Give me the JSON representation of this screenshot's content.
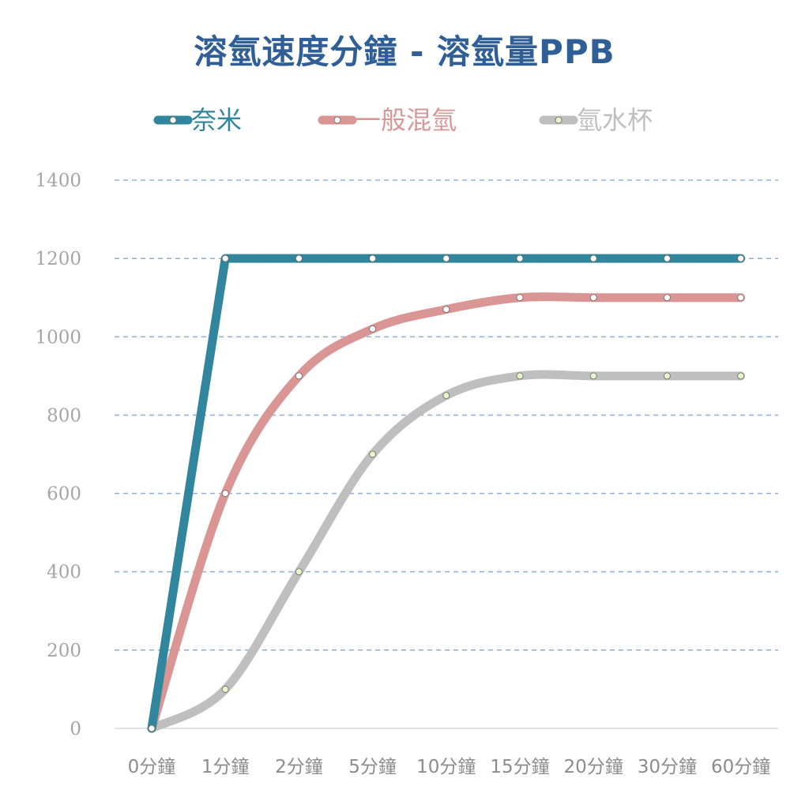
{
  "chart_data": {
    "type": "line",
    "title": "溶氫速度分鐘 - 溶氫量PPB",
    "categories": [
      "0分鐘",
      "1分鐘",
      "2分鐘",
      "5分鐘",
      "10分鐘",
      "15分鐘",
      "20分鐘",
      "30分鐘",
      "60分鐘"
    ],
    "ylim": [
      0,
      1400
    ],
    "yticks": [
      "0",
      "200",
      "400",
      "600",
      "800",
      "1000",
      "1200",
      "1400"
    ],
    "grid": true,
    "legend_position": "top",
    "series": [
      {
        "name": "奈米",
        "color": "#31859c",
        "smooth": false,
        "values": [
          0,
          1200,
          1200,
          1200,
          1200,
          1200,
          1200,
          1200,
          1200
        ]
      },
      {
        "name": "一般混氫",
        "color": "#d99694",
        "smooth": true,
        "values": [
          0,
          600,
          900,
          1020,
          1070,
          1100,
          1100,
          1100,
          1100
        ]
      },
      {
        "name": "氫水杯",
        "color": "#bfbfbf",
        "smooth": true,
        "values": [
          0,
          100,
          400,
          700,
          850,
          900,
          900,
          900,
          900
        ]
      }
    ]
  }
}
